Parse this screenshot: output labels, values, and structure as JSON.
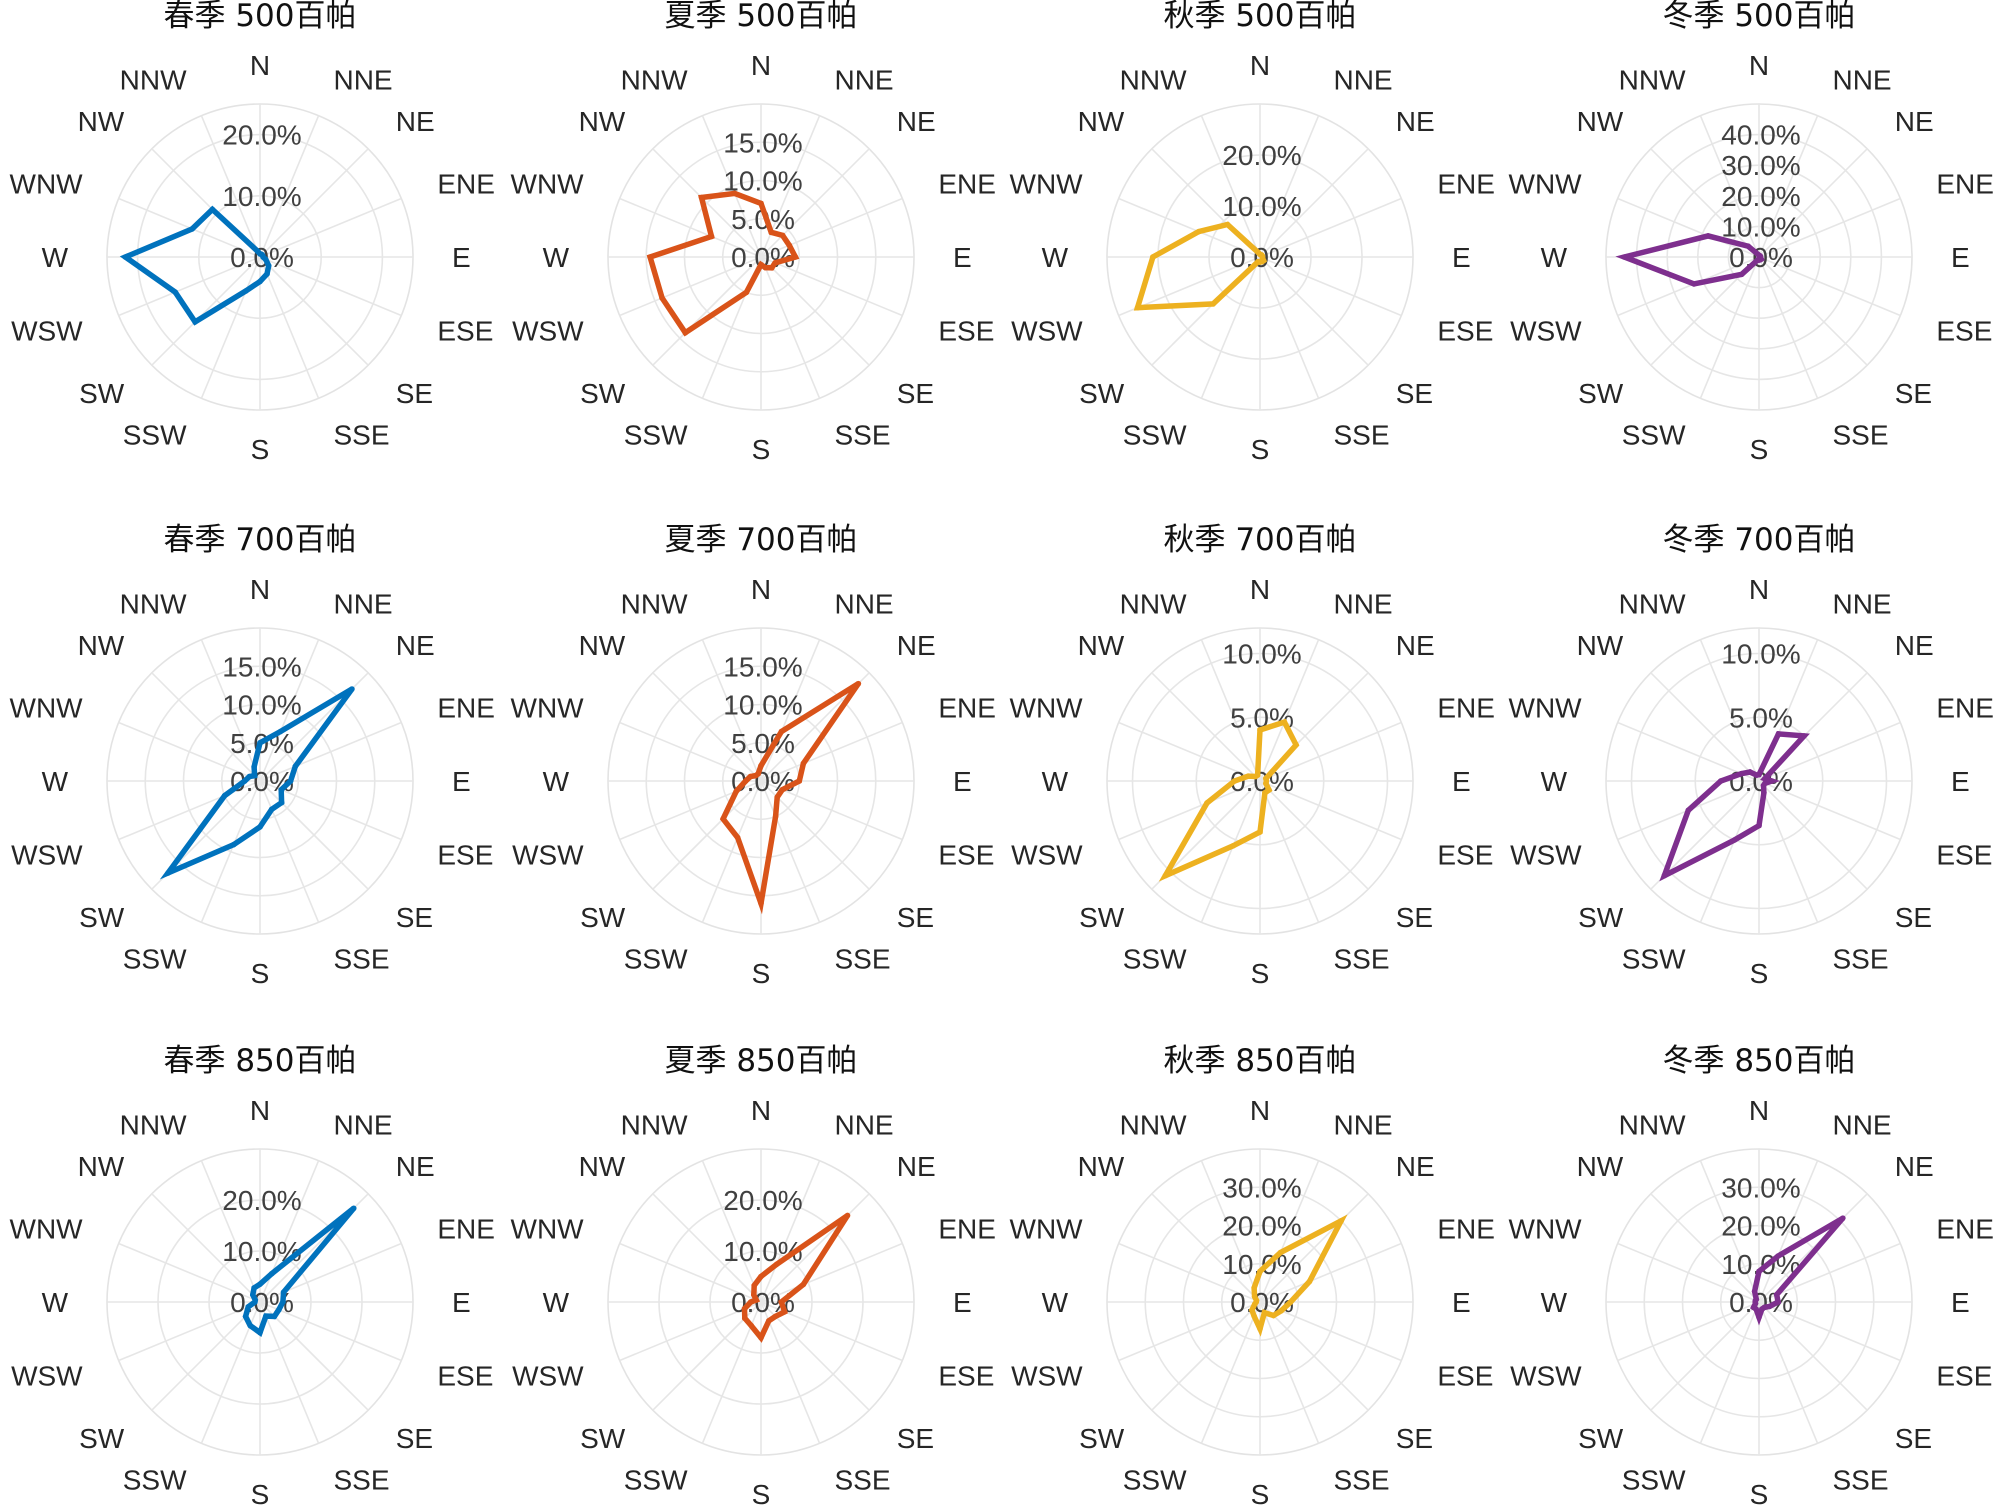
{
  "directions": [
    "N",
    "NNE",
    "NE",
    "ENE",
    "E",
    "ESE",
    "SE",
    "SSE",
    "S",
    "SSW",
    "SW",
    "WSW",
    "W",
    "WNW",
    "NW",
    "NNW"
  ],
  "colors": {
    "春季": "#0072BD",
    "夏季": "#D95319",
    "秋季": "#EDB120",
    "冬季": "#7E2F8E"
  },
  "chart_data": [
    {
      "type": "polar-line",
      "title": "春季 500百帕",
      "season": "春季",
      "level": "500百帕",
      "rmax": 25,
      "rticks": [
        0,
        10,
        20
      ],
      "rtick_labels": [
        "0.0%",
        "10.0%",
        "20.0%"
      ],
      "values": [
        0.5,
        0.5,
        0.5,
        0.5,
        0.5,
        1,
        2,
        3,
        4,
        6,
        15,
        15,
        22,
        12,
        11,
        1
      ]
    },
    {
      "type": "polar-line",
      "title": "夏季 500百帕",
      "season": "夏季",
      "level": "500百帕",
      "rmax": 20,
      "rticks": [
        0,
        5,
        10,
        15
      ],
      "rtick_labels": [
        "0.0%",
        "5.0%",
        "10.0%",
        "15.0%"
      ],
      "values": [
        7,
        3.5,
        4,
        4,
        4.5,
        2,
        2,
        1.5,
        1,
        5,
        14,
        14,
        14.5,
        7,
        11,
        9
      ]
    },
    {
      "type": "polar-line",
      "title": "秋季 500百帕",
      "season": "秋季",
      "level": "500百帕",
      "rmax": 30,
      "rticks": [
        0,
        10,
        20
      ],
      "rtick_labels": [
        "0.0%",
        "10.0%",
        "20.0%"
      ],
      "values": [
        0.5,
        0.5,
        0.5,
        0.5,
        0.5,
        0.5,
        1,
        1,
        1,
        1,
        13,
        26,
        21,
        13,
        9,
        1
      ]
    },
    {
      "type": "polar-line",
      "title": "冬季 500百帕",
      "season": "冬季",
      "level": "500百帕",
      "rmax": 50,
      "rticks": [
        0,
        10,
        20,
        30,
        40
      ],
      "rtick_labels": [
        "0.0%",
        "10.0%",
        "20.0%",
        "30.0%",
        "40.0%"
      ],
      "values": [
        0.5,
        0.5,
        0.5,
        0.5,
        0.5,
        0.5,
        1,
        1,
        1,
        1,
        8,
        23,
        44,
        18,
        5,
        1
      ]
    },
    {
      "type": "polar-line",
      "title": "春季 700百帕",
      "season": "春季",
      "level": "700百帕",
      "rmax": 20,
      "rticks": [
        0,
        5,
        10,
        15
      ],
      "rtick_labels": [
        "0.0%",
        "5.0%",
        "10.0%",
        "15.0%"
      ],
      "values": [
        5,
        7,
        17,
        5,
        4,
        3,
        4,
        4,
        6,
        9,
        17,
        5,
        2,
        1.5,
        1,
        2
      ]
    },
    {
      "type": "polar-line",
      "title": "夏季 700百帕",
      "season": "夏季",
      "level": "700百帕",
      "rmax": 20,
      "rticks": [
        0,
        5,
        10,
        15
      ],
      "rtick_labels": [
        "0.0%",
        "5.0%",
        "10.0%",
        "15.0%"
      ],
      "values": [
        2,
        7,
        18,
        6,
        5,
        3,
        3,
        5,
        16,
        8,
        7,
        3.5,
        2,
        1.5,
        1,
        1
      ]
    },
    {
      "type": "polar-line",
      "title": "秋季 700百帕",
      "season": "秋季",
      "level": "700百帕",
      "rmax": 12,
      "rticks": [
        0,
        5,
        10
      ],
      "rtick_labels": [
        "0.0%",
        "5.0%",
        "10.0%"
      ],
      "values": [
        4,
        5,
        4,
        0.5,
        0.5,
        0.5,
        1,
        1,
        4,
        5.5,
        10.5,
        4.5,
        2,
        1,
        0.5,
        0.5
      ]
    },
    {
      "type": "polar-line",
      "title": "冬季 700百帕",
      "season": "冬季",
      "level": "700百帕",
      "rmax": 12,
      "rticks": [
        0,
        5,
        10
      ],
      "rtick_labels": [
        "0.0%",
        "5.0%",
        "10.0%"
      ],
      "values": [
        0.5,
        4,
        5,
        0.5,
        1,
        0.5,
        0.5,
        1,
        3.5,
        5,
        10.5,
        6,
        3,
        1.5,
        1,
        0.5
      ]
    },
    {
      "type": "polar-line",
      "title": "春季 850百帕",
      "season": "春季",
      "level": "850百帕",
      "rmax": 30,
      "rticks": [
        0,
        10,
        20
      ],
      "rtick_labels": [
        "0.0%",
        "10.0%",
        "20.0%"
      ],
      "values": [
        3.5,
        6,
        26,
        5,
        4.5,
        4,
        4,
        3,
        6,
        5,
        4,
        2.5,
        1,
        1,
        2,
        3
      ]
    },
    {
      "type": "polar-line",
      "title": "夏季 850百帕",
      "season": "夏季",
      "level": "850百帕",
      "rmax": 30,
      "rticks": [
        0,
        10,
        20
      ],
      "rtick_labels": [
        "0.0%",
        "10.0%",
        "20.0%"
      ],
      "values": [
        5,
        8,
        24,
        9,
        4,
        5,
        4,
        4,
        7,
        5,
        4.5,
        3.5,
        2,
        1,
        2,
        3.5
      ]
    },
    {
      "type": "polar-line",
      "title": "秋季 850百帕",
      "season": "秋季",
      "level": "850百帕",
      "rmax": 40,
      "rticks": [
        0,
        10,
        20,
        30
      ],
      "rtick_labels": [
        "0.0%",
        "10.0%",
        "20.0%",
        "30.0%"
      ],
      "values": [
        8,
        14,
        30,
        14,
        8,
        6,
        5,
        3,
        7,
        4,
        3,
        1.5,
        1,
        1,
        2,
        4
      ]
    },
    {
      "type": "polar-line",
      "title": "冬季 850百帕",
      "season": "冬季",
      "level": "850百帕",
      "rmax": 40,
      "rticks": [
        0,
        10,
        20,
        30
      ],
      "rtick_labels": [
        "0.0%",
        "10.0%",
        "20.0%",
        "30.0%"
      ],
      "values": [
        8,
        13,
        31,
        5,
        5,
        3,
        2,
        2,
        4,
        2,
        2,
        1,
        1,
        1,
        1,
        3
      ]
    }
  ]
}
